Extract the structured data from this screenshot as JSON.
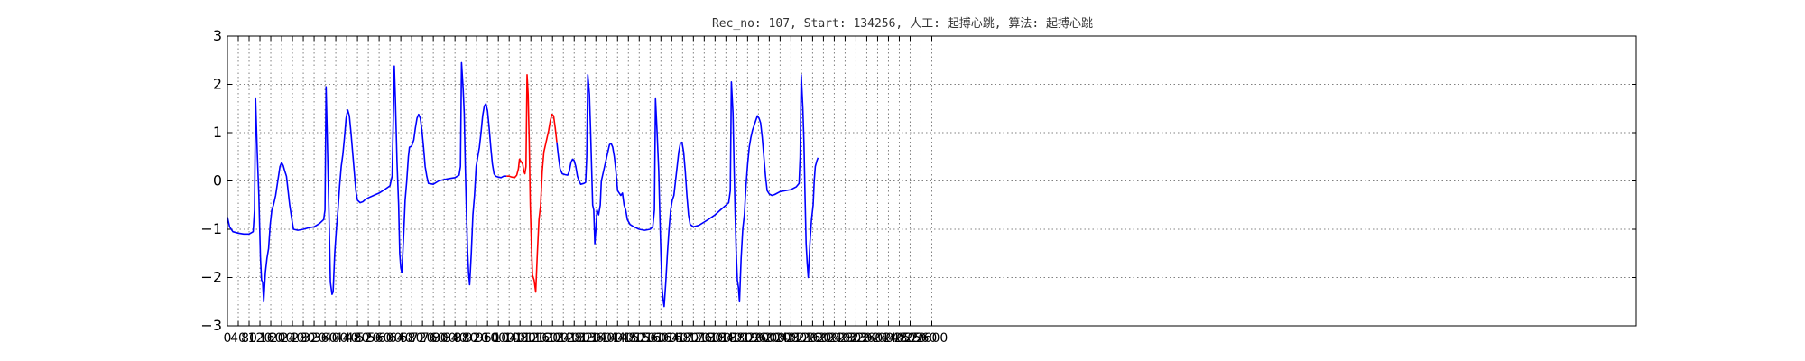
{
  "chart_data": {
    "type": "line",
    "title": "Rec_no: 107, Start: 134256, 人工: 起搏心跳, 算法: 起搏心跳",
    "xlabel": "",
    "ylabel": "",
    "xlim": [
      0,
      5200
    ],
    "ylim": [
      -3,
      3
    ],
    "yticks": [
      3,
      2,
      1,
      0,
      -1,
      -2,
      -3
    ],
    "xticks": [
      0,
      40,
      80,
      120,
      160,
      200,
      240,
      280,
      320,
      360,
      400,
      440,
      480,
      520,
      560,
      600,
      640,
      680,
      720,
      760,
      800,
      840,
      880,
      920,
      960,
      1000,
      1040,
      1080,
      1120,
      1160,
      1200,
      1240,
      1280,
      1320,
      1360,
      1400,
      1440,
      1480,
      1520,
      1560,
      1600,
      1640,
      1680,
      1720,
      1760,
      1800,
      1840,
      1880,
      1920,
      1960,
      2000,
      2040,
      2080,
      2120,
      2160,
      2200,
      2240,
      2280,
      2320,
      2360,
      2400,
      2440,
      2480,
      2520,
      2560,
      2600
    ],
    "xtick_labels": [
      "0",
      "40",
      "80",
      "120",
      "160",
      "200",
      "240",
      "280",
      "320",
      "360",
      "400",
      "440",
      "480",
      "520",
      "560",
      "600",
      "640",
      "680",
      "720",
      "760",
      "800",
      "840",
      "880",
      "920",
      "960",
      "1000",
      "1040",
      "1080",
      "1120",
      "1160",
      "1200",
      "1240",
      "1280",
      "1320",
      "1360",
      "1400",
      "1440",
      "1480",
      "1520",
      "1560",
      "1600",
      "1640",
      "1680",
      "1720",
      "1760",
      "1800",
      "1840",
      "1880",
      "1920",
      "1960",
      "2000",
      "2040",
      "2080",
      "2120",
      "2160",
      "2200",
      "2240",
      "2280",
      "2320",
      "2360",
      "2400",
      "2440",
      "2480",
      "2520",
      "2560",
      "2600"
    ],
    "grid": true,
    "series": [
      {
        "color": "#0000ff",
        "points": [
          [
            0,
            -0.75
          ],
          [
            8,
            -0.95
          ],
          [
            20,
            -1.05
          ],
          [
            40,
            -1.08
          ],
          [
            60,
            -1.1
          ],
          [
            80,
            -1.1
          ],
          [
            95,
            -1.05
          ],
          [
            100,
            -0.6
          ],
          [
            104,
            1.7
          ],
          [
            110,
            0.6
          ],
          [
            116,
            -0.3
          ],
          [
            122,
            -1.6
          ],
          [
            126,
            -2.05
          ],
          [
            130,
            -2.1
          ],
          [
            134,
            -2.5
          ],
          [
            140,
            -1.9
          ],
          [
            146,
            -1.6
          ],
          [
            152,
            -1.4
          ],
          [
            158,
            -0.9
          ],
          [
            164,
            -0.6
          ],
          [
            170,
            -0.5
          ],
          [
            178,
            -0.3
          ],
          [
            186,
            0.0
          ],
          [
            194,
            0.3
          ],
          [
            200,
            0.38
          ],
          [
            206,
            0.32
          ],
          [
            212,
            0.2
          ],
          [
            218,
            0.1
          ],
          [
            224,
            -0.2
          ],
          [
            230,
            -0.5
          ],
          [
            238,
            -0.8
          ],
          [
            244,
            -1.0
          ],
          [
            260,
            -1.02
          ],
          [
            280,
            -1.0
          ],
          [
            300,
            -0.97
          ],
          [
            320,
            -0.95
          ],
          [
            340,
            -0.88
          ],
          [
            355,
            -0.8
          ],
          [
            360,
            -0.6
          ],
          [
            364,
            1.95
          ],
          [
            368,
            1.0
          ],
          [
            372,
            0.0
          ],
          [
            376,
            -1.0
          ],
          [
            380,
            -2.1
          ],
          [
            386,
            -2.35
          ],
          [
            390,
            -2.3
          ],
          [
            396,
            -1.5
          ],
          [
            402,
            -1.0
          ],
          [
            408,
            -0.6
          ],
          [
            414,
            -0.1
          ],
          [
            420,
            0.3
          ],
          [
            426,
            0.55
          ],
          [
            432,
            0.9
          ],
          [
            438,
            1.3
          ],
          [
            444,
            1.47
          ],
          [
            450,
            1.35
          ],
          [
            456,
            1.0
          ],
          [
            462,
            0.6
          ],
          [
            468,
            0.2
          ],
          [
            474,
            -0.2
          ],
          [
            480,
            -0.4
          ],
          [
            490,
            -0.45
          ],
          [
            500,
            -0.43
          ],
          [
            510,
            -0.38
          ],
          [
            520,
            -0.35
          ],
          [
            540,
            -0.3
          ],
          [
            560,
            -0.25
          ],
          [
            580,
            -0.18
          ],
          [
            600,
            -0.1
          ],
          [
            608,
            0.1
          ],
          [
            612,
            1.2
          ],
          [
            616,
            2.38
          ],
          [
            620,
            1.7
          ],
          [
            626,
            0.4
          ],
          [
            632,
            -0.5
          ],
          [
            636,
            -1.5
          ],
          [
            640,
            -1.8
          ],
          [
            644,
            -1.9
          ],
          [
            650,
            -1.2
          ],
          [
            656,
            -0.4
          ],
          [
            662,
            0.0
          ],
          [
            668,
            0.5
          ],
          [
            672,
            0.7
          ],
          [
            680,
            0.72
          ],
          [
            688,
            0.85
          ],
          [
            694,
            1.1
          ],
          [
            700,
            1.3
          ],
          [
            706,
            1.38
          ],
          [
            712,
            1.3
          ],
          [
            718,
            1.05
          ],
          [
            724,
            0.7
          ],
          [
            730,
            0.3
          ],
          [
            736,
            0.1
          ],
          [
            742,
            -0.05
          ],
          [
            760,
            -0.07
          ],
          [
            780,
            0.0
          ],
          [
            800,
            0.03
          ],
          [
            820,
            0.05
          ],
          [
            840,
            0.07
          ],
          [
            855,
            0.12
          ],
          [
            860,
            0.3
          ],
          [
            864,
            2.45
          ],
          [
            870,
            1.9
          ],
          [
            874,
            1.4
          ],
          [
            878,
            0.3
          ],
          [
            882,
            -0.6
          ],
          [
            886,
            -1.4
          ],
          [
            890,
            -1.9
          ],
          [
            894,
            -2.15
          ],
          [
            900,
            -1.5
          ],
          [
            906,
            -0.7
          ],
          [
            912,
            -0.3
          ],
          [
            918,
            0.3
          ],
          [
            924,
            0.5
          ],
          [
            930,
            0.7
          ],
          [
            936,
            1.0
          ],
          [
            942,
            1.35
          ],
          [
            948,
            1.55
          ],
          [
            954,
            1.6
          ],
          [
            960,
            1.45
          ],
          [
            966,
            1.1
          ],
          [
            972,
            0.7
          ],
          [
            978,
            0.35
          ],
          [
            984,
            0.15
          ],
          [
            990,
            0.1
          ],
          [
            1000,
            0.08
          ],
          [
            1010,
            0.07
          ],
          [
            1020,
            0.1
          ],
          [
            1030,
            0.1
          ]
        ]
      },
      {
        "color": "#ff0000",
        "points": [
          [
            1030,
            0.1
          ],
          [
            1040,
            0.1
          ],
          [
            1050,
            0.08
          ],
          [
            1060,
            0.07
          ],
          [
            1068,
            0.12
          ],
          [
            1074,
            0.25
          ],
          [
            1078,
            0.45
          ],
          [
            1084,
            0.4
          ],
          [
            1090,
            0.35
          ],
          [
            1094,
            0.2
          ],
          [
            1098,
            0.15
          ],
          [
            1102,
            0.3
          ],
          [
            1106,
            2.2
          ],
          [
            1110,
            1.8
          ],
          [
            1114,
            0.8
          ],
          [
            1118,
            -0.5
          ],
          [
            1122,
            -1.3
          ],
          [
            1126,
            -1.95
          ],
          [
            1132,
            -2.05
          ],
          [
            1138,
            -2.3
          ],
          [
            1144,
            -1.5
          ],
          [
            1150,
            -0.8
          ],
          [
            1156,
            -0.5
          ],
          [
            1162,
            0.2
          ],
          [
            1168,
            0.6
          ],
          [
            1174,
            0.75
          ],
          [
            1180,
            0.9
          ],
          [
            1186,
            1.05
          ],
          [
            1192,
            1.25
          ],
          [
            1198,
            1.38
          ],
          [
            1204,
            1.35
          ],
          [
            1210,
            1.1
          ],
          [
            1216,
            0.8
          ]
        ]
      },
      {
        "color": "#0000ff",
        "points": [
          [
            1216,
            0.8
          ],
          [
            1222,
            0.5
          ],
          [
            1228,
            0.25
          ],
          [
            1236,
            0.15
          ],
          [
            1246,
            0.13
          ],
          [
            1256,
            0.12
          ],
          [
            1262,
            0.2
          ],
          [
            1268,
            0.38
          ],
          [
            1274,
            0.45
          ],
          [
            1280,
            0.42
          ],
          [
            1286,
            0.3
          ],
          [
            1292,
            0.1
          ],
          [
            1298,
            0.0
          ],
          [
            1304,
            -0.07
          ],
          [
            1316,
            -0.05
          ],
          [
            1322,
            -0.03
          ],
          [
            1326,
            0.5
          ],
          [
            1330,
            2.2
          ],
          [
            1336,
            1.8
          ],
          [
            1340,
            1.1
          ],
          [
            1344,
            0.3
          ],
          [
            1348,
            -0.5
          ],
          [
            1352,
            -0.6
          ],
          [
            1356,
            -1.3
          ],
          [
            1360,
            -1.0
          ],
          [
            1364,
            -0.6
          ],
          [
            1370,
            -0.7
          ],
          [
            1376,
            -0.5
          ],
          [
            1380,
            0.0
          ],
          [
            1386,
            0.15
          ],
          [
            1392,
            0.3
          ],
          [
            1398,
            0.45
          ],
          [
            1404,
            0.6
          ],
          [
            1410,
            0.75
          ],
          [
            1416,
            0.78
          ],
          [
            1422,
            0.7
          ],
          [
            1428,
            0.5
          ],
          [
            1434,
            0.2
          ],
          [
            1440,
            -0.2
          ],
          [
            1446,
            -0.25
          ],
          [
            1452,
            -0.3
          ],
          [
            1458,
            -0.25
          ],
          [
            1464,
            -0.5
          ],
          [
            1470,
            -0.6
          ],
          [
            1476,
            -0.8
          ],
          [
            1486,
            -0.9
          ],
          [
            1500,
            -0.95
          ],
          [
            1520,
            -1.0
          ],
          [
            1540,
            -1.02
          ],
          [
            1560,
            -1.0
          ],
          [
            1570,
            -0.95
          ],
          [
            1576,
            -0.6
          ],
          [
            1580,
            1.7
          ],
          [
            1586,
            1.0
          ],
          [
            1592,
            0.2
          ],
          [
            1596,
            -0.7
          ],
          [
            1600,
            -1.5
          ],
          [
            1604,
            -2.2
          ],
          [
            1608,
            -2.45
          ],
          [
            1612,
            -2.6
          ],
          [
            1618,
            -2.1
          ],
          [
            1624,
            -1.5
          ],
          [
            1630,
            -1.0
          ],
          [
            1636,
            -0.6
          ],
          [
            1642,
            -0.4
          ],
          [
            1648,
            -0.3
          ],
          [
            1654,
            0.0
          ],
          [
            1660,
            0.3
          ],
          [
            1666,
            0.6
          ],
          [
            1672,
            0.78
          ],
          [
            1678,
            0.8
          ],
          [
            1684,
            0.6
          ],
          [
            1690,
            0.2
          ],
          [
            1696,
            -0.3
          ],
          [
            1702,
            -0.7
          ],
          [
            1708,
            -0.9
          ],
          [
            1720,
            -0.95
          ],
          [
            1740,
            -0.92
          ],
          [
            1760,
            -0.85
          ],
          [
            1780,
            -0.78
          ],
          [
            1800,
            -0.7
          ],
          [
            1820,
            -0.6
          ],
          [
            1840,
            -0.5
          ],
          [
            1850,
            -0.45
          ],
          [
            1856,
            -0.2
          ],
          [
            1860,
            2.05
          ],
          [
            1866,
            1.4
          ],
          [
            1870,
            0.3
          ],
          [
            1874,
            -0.7
          ],
          [
            1878,
            -1.5
          ],
          [
            1882,
            -2.05
          ],
          [
            1886,
            -2.2
          ],
          [
            1890,
            -2.5
          ],
          [
            1896,
            -1.6
          ],
          [
            1902,
            -1.0
          ],
          [
            1908,
            -0.7
          ],
          [
            1914,
            -0.1
          ],
          [
            1920,
            0.35
          ],
          [
            1926,
            0.7
          ],
          [
            1932,
            0.9
          ],
          [
            1938,
            1.05
          ],
          [
            1944,
            1.15
          ],
          [
            1950,
            1.25
          ],
          [
            1956,
            1.35
          ],
          [
            1962,
            1.3
          ],
          [
            1968,
            1.2
          ],
          [
            1974,
            0.9
          ],
          [
            1980,
            0.5
          ],
          [
            1986,
            0.1
          ],
          [
            1992,
            -0.2
          ],
          [
            2000,
            -0.27
          ],
          [
            2010,
            -0.3
          ],
          [
            2020,
            -0.28
          ],
          [
            2040,
            -0.22
          ],
          [
            2060,
            -0.2
          ],
          [
            2080,
            -0.18
          ],
          [
            2100,
            -0.12
          ],
          [
            2110,
            -0.05
          ],
          [
            2114,
            0.5
          ],
          [
            2118,
            2.2
          ],
          [
            2124,
            1.5
          ],
          [
            2128,
            0.8
          ],
          [
            2132,
            -0.3
          ],
          [
            2136,
            -1.3
          ],
          [
            2140,
            -1.7
          ],
          [
            2144,
            -2.0
          ],
          [
            2150,
            -1.3
          ],
          [
            2156,
            -0.8
          ],
          [
            2162,
            -0.5
          ],
          [
            2166,
            0.0
          ],
          [
            2170,
            0.3
          ],
          [
            2176,
            0.42
          ],
          [
            2180,
            0.48
          ]
        ]
      }
    ]
  }
}
